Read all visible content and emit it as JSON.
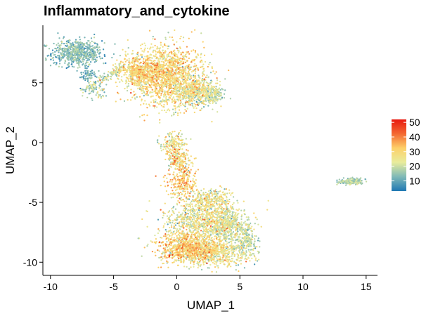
{
  "chart_data": {
    "type": "scatter",
    "title": "Inflammatory_and_cytokine",
    "xlabel": "UMAP_1",
    "ylabel": "UMAP_2",
    "xlim": [
      -10.6,
      15.9
    ],
    "ylim": [
      -11.1,
      9.8
    ],
    "x_ticks": [
      -10,
      -5,
      0,
      5,
      10,
      15
    ],
    "y_ticks": [
      -10,
      -5,
      0,
      5
    ],
    "grid": false,
    "legend": {
      "position": "right",
      "min": 3,
      "max": 52,
      "ticks": [
        10,
        20,
        30,
        40,
        50
      ],
      "colors": [
        "#1f78b4",
        "#7fb9b7",
        "#e8ec9c",
        "#fdd069",
        "#f36832",
        "#e8190f"
      ]
    },
    "clusters": [
      {
        "cx": -7.9,
        "cy": 7.5,
        "sx": 1.0,
        "sy": 0.55,
        "n": 650,
        "value_mean": 12,
        "value_sd": 4
      },
      {
        "cx": -7.0,
        "cy": 5.6,
        "sx": 0.4,
        "sy": 0.3,
        "n": 70,
        "value_mean": 11,
        "value_sd": 4
      },
      {
        "cx": -6.4,
        "cy": 4.4,
        "sx": 0.5,
        "sy": 0.45,
        "n": 60,
        "value_mean": 18,
        "value_sd": 5
      },
      {
        "cx": -3.2,
        "cy": 6.0,
        "sx": 0.75,
        "sy": 0.55,
        "n": 380,
        "value_mean": 27,
        "value_sd": 6
      },
      {
        "cx": -0.8,
        "cy": 5.6,
        "sx": 1.5,
        "sy": 1.25,
        "n": 1600,
        "value_mean": 27,
        "value_sd": 6
      },
      {
        "cx": 1.5,
        "cy": 4.2,
        "sx": 0.9,
        "sy": 0.6,
        "n": 450,
        "value_mean": 22,
        "value_sd": 6
      },
      {
        "cx": 2.9,
        "cy": 4.0,
        "sx": 0.4,
        "sy": 0.3,
        "n": 140,
        "value_mean": 18,
        "value_sd": 5
      },
      {
        "cx": -0.3,
        "cy": 0.0,
        "sx": 0.5,
        "sy": 0.4,
        "n": 130,
        "value_mean": 24,
        "value_sd": 6
      },
      {
        "cx": 0.2,
        "cy": -1.3,
        "sx": 0.5,
        "sy": 0.5,
        "n": 150,
        "value_mean": 26,
        "value_sd": 7
      },
      {
        "cx": 0.4,
        "cy": -3.4,
        "sx": 0.6,
        "sy": 0.65,
        "n": 200,
        "value_mean": 31,
        "value_sd": 6
      },
      {
        "cx": 2.6,
        "cy": -4.7,
        "sx": 0.9,
        "sy": 0.45,
        "n": 250,
        "value_mean": 24,
        "value_sd": 6
      },
      {
        "cx": 2.2,
        "cy": -6.6,
        "sx": 1.6,
        "sy": 0.9,
        "n": 1000,
        "value_mean": 23,
        "value_sd": 6
      },
      {
        "cx": 4.0,
        "cy": -6.8,
        "sx": 0.6,
        "sy": 0.7,
        "n": 280,
        "value_mean": 18,
        "value_sd": 5
      },
      {
        "cx": 0.8,
        "cy": -8.8,
        "sx": 1.1,
        "sy": 0.6,
        "n": 700,
        "value_mean": 29,
        "value_sd": 6
      },
      {
        "cx": 2.8,
        "cy": -9.1,
        "sx": 1.4,
        "sy": 0.55,
        "n": 700,
        "value_mean": 24,
        "value_sd": 6
      },
      {
        "cx": 5.5,
        "cy": -8.2,
        "sx": 0.4,
        "sy": 0.8,
        "n": 220,
        "value_mean": 19,
        "value_sd": 5
      },
      {
        "cx": 13.8,
        "cy": -3.25,
        "sx": 0.55,
        "sy": 0.13,
        "n": 170,
        "value_mean": 15,
        "value_sd": 4
      }
    ],
    "bridges": [
      {
        "x0": -7.3,
        "y0": 4.3,
        "x1": -4.3,
        "y1": 6.3,
        "n": 110,
        "spread": 0.15,
        "value_mean": 17,
        "value_sd": 5
      },
      {
        "x0": -0.6,
        "y0": -0.2,
        "x1": 0.8,
        "y1": -3.2,
        "n": 90,
        "spread": 0.25,
        "value_mean": 29,
        "value_sd": 7
      }
    ]
  }
}
